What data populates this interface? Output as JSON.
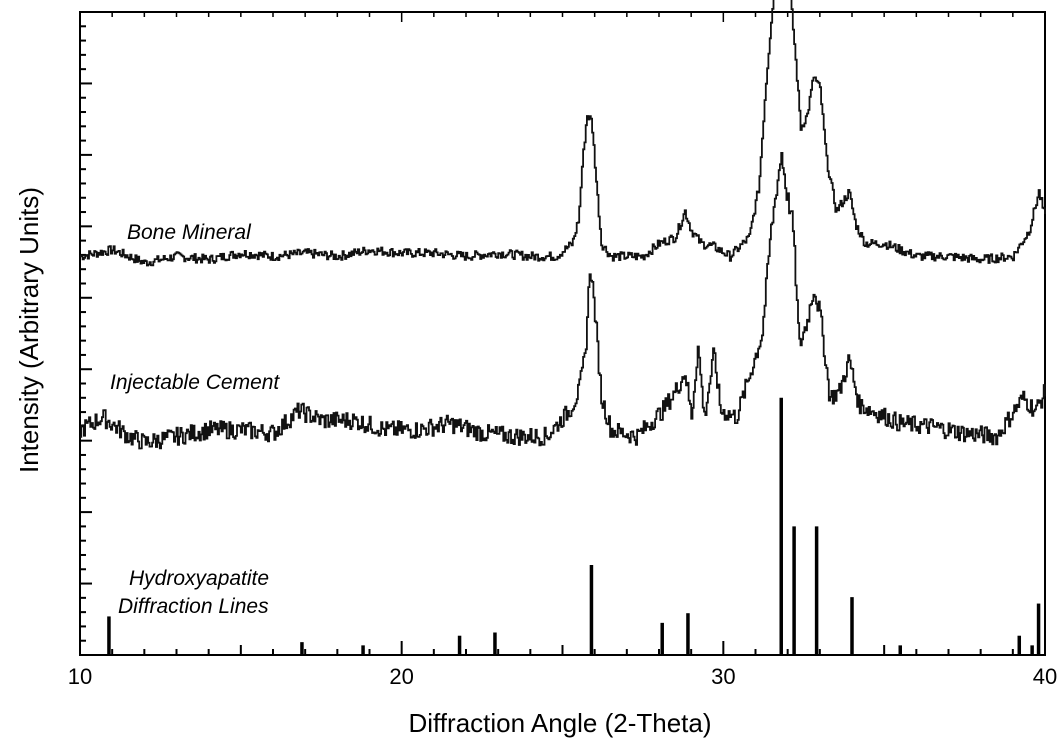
{
  "chart_data": {
    "type": "line",
    "xlabel": "Diffraction Angle  (2-Theta)",
    "ylabel": "Intensity (Arbitrary Units)",
    "xlim": [
      10,
      40
    ],
    "xticks": [
      10,
      20,
      30,
      40
    ],
    "y_tick_labels": false,
    "grid": false,
    "annotations": {
      "bone": "Bone Mineral",
      "cement": "Injectable Cement",
      "hap_line1": "Hydroxyapatite",
      "hap_line2": "Diffraction Lines"
    },
    "series": [
      {
        "key": "bone",
        "offset": 0.62,
        "points": [
          [
            10,
            0.0
          ],
          [
            11,
            0.01
          ],
          [
            12,
            -0.01
          ],
          [
            13,
            0.0
          ],
          [
            14,
            -0.005
          ],
          [
            15,
            0.005
          ],
          [
            16,
            0.0
          ],
          [
            17,
            0.005
          ],
          [
            18,
            0.0
          ],
          [
            19,
            0.01
          ],
          [
            20,
            0.005
          ],
          [
            21,
            0.005
          ],
          [
            22,
            0.0
          ],
          [
            23,
            0.005
          ],
          [
            24,
            0.0
          ],
          [
            24.8,
            0.0
          ],
          [
            25.3,
            0.02
          ],
          [
            25.5,
            0.06
          ],
          [
            25.6,
            0.14
          ],
          [
            25.75,
            0.22
          ],
          [
            25.9,
            0.21
          ],
          [
            26.05,
            0.11
          ],
          [
            26.2,
            0.02
          ],
          [
            26.5,
            0.0
          ],
          [
            27.5,
            0.0
          ],
          [
            28,
            0.02
          ],
          [
            28.5,
            0.03
          ],
          [
            28.8,
            0.07
          ],
          [
            29.0,
            0.04
          ],
          [
            29.3,
            0.02
          ],
          [
            29.7,
            0.015
          ],
          [
            30.2,
            0.0
          ],
          [
            30.8,
            0.03
          ],
          [
            31.1,
            0.11
          ],
          [
            31.3,
            0.26
          ],
          [
            31.5,
            0.38
          ],
          [
            31.75,
            0.48
          ],
          [
            32.0,
            0.45
          ],
          [
            32.2,
            0.33
          ],
          [
            32.4,
            0.2
          ],
          [
            32.6,
            0.22
          ],
          [
            32.8,
            0.28
          ],
          [
            33.0,
            0.26
          ],
          [
            33.2,
            0.15
          ],
          [
            33.5,
            0.07
          ],
          [
            33.9,
            0.1
          ],
          [
            34.1,
            0.05
          ],
          [
            34.4,
            0.02
          ],
          [
            35,
            0.02
          ],
          [
            36,
            0.0
          ],
          [
            37,
            0.0
          ],
          [
            38,
            -0.005
          ],
          [
            39,
            0.0
          ],
          [
            39.5,
            0.04
          ],
          [
            39.8,
            0.1
          ],
          [
            40,
            0.06
          ]
        ]
      },
      {
        "key": "cement",
        "offset": 0.35,
        "points": [
          [
            10,
            0.0
          ],
          [
            10.7,
            0.02
          ],
          [
            11.5,
            -0.01
          ],
          [
            12,
            -0.02
          ],
          [
            13,
            -0.01
          ],
          [
            14,
            0.0
          ],
          [
            15,
            0.0
          ],
          [
            16,
            -0.005
          ],
          [
            16.8,
            0.03
          ],
          [
            17.5,
            0.015
          ],
          [
            18.5,
            0.015
          ],
          [
            19.5,
            0.0
          ],
          [
            20.5,
            0.0
          ],
          [
            21.5,
            0.01
          ],
          [
            22.5,
            -0.005
          ],
          [
            23.5,
            -0.01
          ],
          [
            24.5,
            -0.01
          ],
          [
            25.2,
            0.03
          ],
          [
            25.5,
            0.06
          ],
          [
            25.7,
            0.12
          ],
          [
            25.85,
            0.26
          ],
          [
            26.0,
            0.18
          ],
          [
            26.2,
            0.05
          ],
          [
            26.5,
            0.0
          ],
          [
            27.3,
            -0.01
          ],
          [
            28.1,
            0.03
          ],
          [
            28.5,
            0.06
          ],
          [
            28.8,
            0.09
          ],
          [
            29.0,
            0.02
          ],
          [
            29.2,
            0.13
          ],
          [
            29.4,
            0.02
          ],
          [
            29.7,
            0.12
          ],
          [
            29.9,
            0.03
          ],
          [
            30.4,
            0.02
          ],
          [
            30.9,
            0.1
          ],
          [
            31.2,
            0.15
          ],
          [
            31.45,
            0.3
          ],
          [
            31.65,
            0.38
          ],
          [
            31.8,
            0.43
          ],
          [
            31.95,
            0.37
          ],
          [
            32.15,
            0.32
          ],
          [
            32.35,
            0.13
          ],
          [
            32.6,
            0.17
          ],
          [
            32.8,
            0.22
          ],
          [
            33.0,
            0.18
          ],
          [
            33.3,
            0.05
          ],
          [
            33.6,
            0.06
          ],
          [
            33.9,
            0.11
          ],
          [
            34.2,
            0.04
          ],
          [
            34.6,
            0.03
          ],
          [
            35.5,
            0.01
          ],
          [
            36.5,
            0.005
          ],
          [
            37.5,
            -0.005
          ],
          [
            38.5,
            -0.01
          ],
          [
            39.3,
            0.05
          ],
          [
            39.7,
            0.03
          ],
          [
            40,
            0.06
          ]
        ]
      }
    ],
    "reference_lines": {
      "key": "hydroxyapatite",
      "positions": [
        [
          10.9,
          0.06
        ],
        [
          16.9,
          0.02
        ],
        [
          18.8,
          0.015
        ],
        [
          21.8,
          0.03
        ],
        [
          22.9,
          0.035
        ],
        [
          25.9,
          0.14
        ],
        [
          28.1,
          0.05
        ],
        [
          28.9,
          0.065
        ],
        [
          31.8,
          0.4
        ],
        [
          32.2,
          0.2
        ],
        [
          32.9,
          0.2
        ],
        [
          34.0,
          0.09
        ],
        [
          35.5,
          0.015
        ],
        [
          39.2,
          0.03
        ],
        [
          39.6,
          0.015
        ],
        [
          39.8,
          0.08
        ]
      ]
    }
  }
}
